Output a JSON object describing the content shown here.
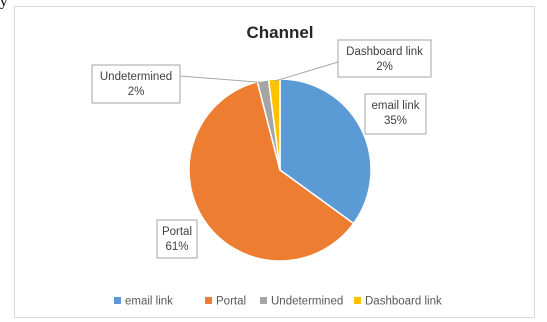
{
  "page_glyph": "y",
  "chart_data": {
    "type": "pie",
    "title": "Channel",
    "legend_position": "bottom",
    "categories": [
      "email link",
      "Portal",
      "Undetermined",
      "Dashboard link"
    ],
    "values": [
      35,
      61,
      2,
      2
    ],
    "data_labels": [
      {
        "name": "email link",
        "pct": "35%"
      },
      {
        "name": "Portal",
        "pct": "61%"
      },
      {
        "name": "Undetermined",
        "pct": "2%"
      },
      {
        "name": "Dashboard link",
        "pct": "2%"
      }
    ],
    "colors": [
      "#5b9bd5",
      "#ed7d31",
      "#a5a5a5",
      "#ffc000"
    ]
  }
}
